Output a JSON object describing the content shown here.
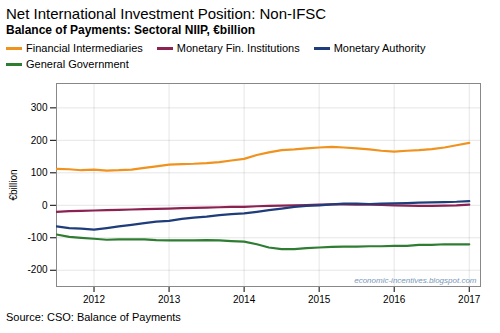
{
  "chart_data": {
    "type": "line",
    "title": "Net International Investment Position: Non-IFSC",
    "subtitle": "Balance of Payments: Sectoral NIIP, €billion",
    "ylabel": "€billion",
    "annotations": [
      "economic-incentives.blogspot.com"
    ],
    "caption": "Source: CSO: Balance of Payments",
    "x": [
      2011.5,
      2011.67,
      2011.83,
      2012.0,
      2012.17,
      2012.33,
      2012.5,
      2012.67,
      2012.83,
      2013.0,
      2013.17,
      2013.33,
      2013.5,
      2013.67,
      2013.83,
      2014.0,
      2014.17,
      2014.33,
      2014.5,
      2014.67,
      2014.83,
      2015.0,
      2015.17,
      2015.33,
      2015.5,
      2015.67,
      2015.83,
      2016.0,
      2016.17,
      2016.33,
      2016.5,
      2016.67,
      2016.83,
      2017.0
    ],
    "series": [
      {
        "name": "Financial Intermediaries",
        "color": "#f0921e",
        "values": [
          112,
          111,
          108,
          110,
          107,
          108,
          110,
          115,
          120,
          125,
          127,
          128,
          130,
          133,
          138,
          143,
          155,
          163,
          170,
          172,
          175,
          178,
          180,
          178,
          175,
          172,
          168,
          165,
          168,
          170,
          173,
          178,
          185,
          192
        ]
      },
      {
        "name": "Monetary Fin. Institutions",
        "color": "#8b2252",
        "values": [
          -20,
          -18,
          -17,
          -16,
          -15,
          -14,
          -13,
          -12,
          -11,
          -10,
          -9,
          -8,
          -7,
          -6,
          -5,
          -5,
          -3,
          -2,
          -1,
          0,
          1,
          2,
          3,
          3,
          2,
          2,
          1,
          0,
          -1,
          -2,
          -2,
          -1,
          0,
          2
        ]
      },
      {
        "name": "Monetary Authority",
        "color": "#1f3d7a",
        "values": [
          -65,
          -70,
          -72,
          -75,
          -70,
          -65,
          -60,
          -55,
          -50,
          -48,
          -42,
          -38,
          -35,
          -30,
          -27,
          -25,
          -20,
          -15,
          -10,
          -5,
          -2,
          0,
          3,
          5,
          5,
          4,
          5,
          6,
          7,
          8,
          9,
          10,
          11,
          13
        ]
      },
      {
        "name": "General Government",
        "color": "#2e7d32",
        "values": [
          -90,
          -97,
          -100,
          -103,
          -106,
          -105,
          -105,
          -105,
          -107,
          -108,
          -108,
          -108,
          -107,
          -108,
          -110,
          -112,
          -120,
          -130,
          -135,
          -135,
          -132,
          -130,
          -128,
          -127,
          -127,
          -126,
          -126,
          -125,
          -125,
          -122,
          -122,
          -120,
          -120,
          -120
        ]
      }
    ],
    "xlim": [
      2011.5,
      2017.15
    ],
    "xticks": [
      2012,
      2013,
      2014,
      2015,
      2016,
      2017
    ],
    "ylim": [
      -250,
      375
    ],
    "yticks": [
      -200,
      -100,
      0,
      100,
      200,
      300
    ],
    "grid": true
  }
}
